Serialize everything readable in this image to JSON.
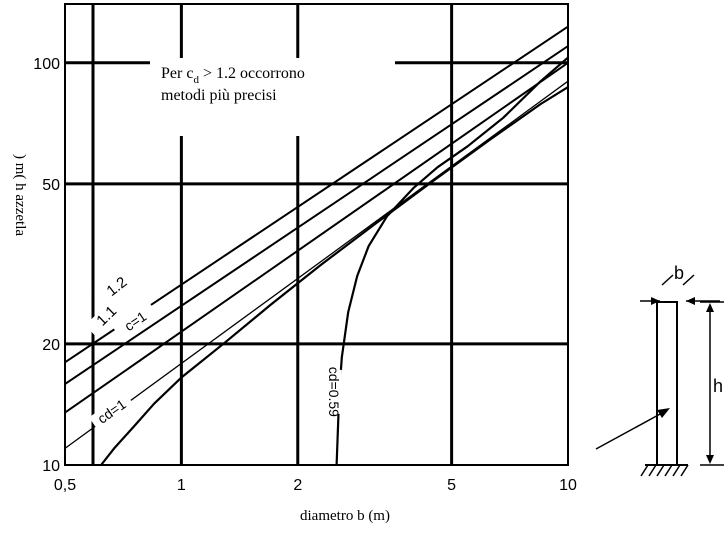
{
  "chart_data": {
    "type": "line",
    "xlabel": "diametro b (m)",
    "ylabel": ") m( h azzetla",
    "xscale": "log",
    "yscale": "log",
    "xlim": [
      0.5,
      10
    ],
    "ylim": [
      10,
      140
    ],
    "x_ticks": [
      "0,5",
      "1",
      "2",
      "5",
      "10"
    ],
    "y_ticks": [
      "10",
      "20",
      "50",
      "100"
    ],
    "grid": true,
    "annotation": {
      "line1_prefix": "Per c",
      "line1_sub": "d",
      "line1_suffix": " > 1.2 occorrono",
      "line2": "metodi più precisi"
    },
    "series": [
      {
        "key": "c12",
        "label": "1.2",
        "x": [
          0.5,
          10
        ],
        "y": [
          18.0,
          123.0
        ]
      },
      {
        "key": "c11",
        "label": "1.1",
        "x": [
          0.5,
          10
        ],
        "y": [
          15.9,
          110.0
        ]
      },
      {
        "key": "c10",
        "label": "c=1",
        "x": [
          0.5,
          10
        ],
        "y": [
          13.5,
          100.0
        ]
      },
      {
        "key": "c09",
        "label": "",
        "x": [
          0.5,
          10
        ],
        "y": [
          11.0,
          90.0
        ]
      },
      {
        "key": "c1",
        "label": "cd=1",
        "x": [
          0.62,
          0.67,
          0.75,
          0.85,
          1.0,
          1.3,
          1.7,
          2.3,
          3.2,
          4.5,
          6.3,
          8.5,
          10
        ],
        "y": [
          10,
          11,
          12.4,
          14.2,
          16.5,
          20.2,
          25,
          31.5,
          40,
          51,
          64.5,
          79,
          87
        ]
      },
      {
        "key": "c059",
        "label": "cd=0.59",
        "x": [
          2.52,
          2.56,
          2.6,
          2.7,
          2.85,
          3.05,
          3.4,
          4.0,
          4.6,
          5.5,
          6.8,
          8.5,
          10
        ],
        "y": [
          10,
          15,
          18.5,
          24,
          29.5,
          35,
          41.5,
          49,
          55,
          62,
          73,
          90,
          103
        ]
      }
    ]
  },
  "diagram": {
    "b_label": "b",
    "h_label": "h"
  }
}
